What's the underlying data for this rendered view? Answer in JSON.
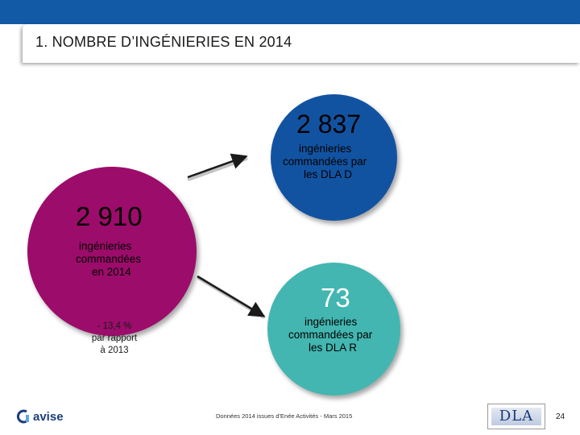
{
  "slide": {
    "title": "1. NOMBRE D’INGÉNIERIES EN 2014",
    "page_number": "24",
    "footer": "Données 2014 issues d’Enée Activités - Mars 2015"
  },
  "main_circle": {
    "value": "2 910",
    "lines": [
      "ingénieries",
      "commandées",
      "en 2014"
    ],
    "color": "#9c0c6a"
  },
  "dla_d_circle": {
    "value": "2 837",
    "lines": [
      "ingénieries",
      "commandées par",
      "les DLA D"
    ],
    "color": "#1253a1"
  },
  "dla_r_circle": {
    "value": "73",
    "lines": [
      "ingénieries",
      "commandées par",
      "les DLA R"
    ],
    "color": "#43b6b1"
  },
  "variation": {
    "lines": [
      "- 13,4 %",
      "par rapport",
      "à 2013"
    ]
  },
  "logos": {
    "avise": "avise",
    "dla": "DLA"
  },
  "colors": {
    "header_band": "#1259a6"
  },
  "icons": {
    "avise_mark": "avise-logo-icon",
    "arrows": "arrow-icon"
  }
}
